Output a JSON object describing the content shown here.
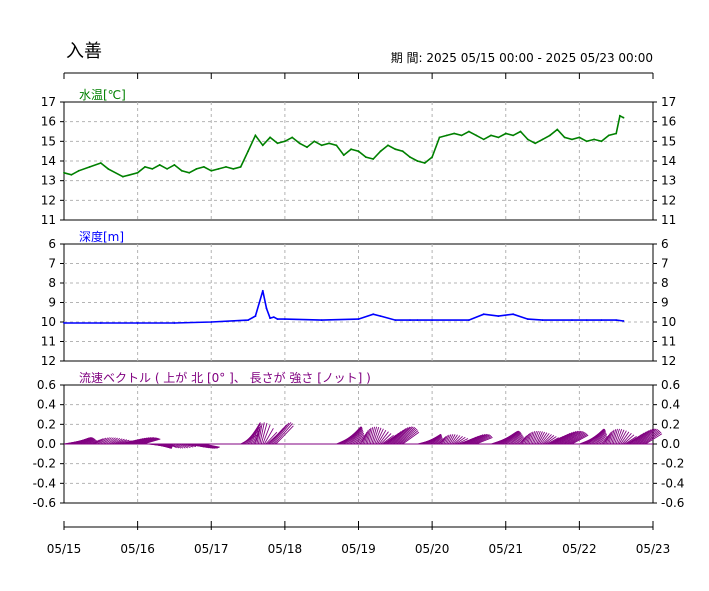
{
  "station": "入善",
  "period": "期 間: 2025 05/15 00:00 - 2025 05/23 00:00",
  "x_ticks": [
    "05/15",
    "05/16",
    "05/17",
    "05/18",
    "05/19",
    "05/20",
    "05/21",
    "05/22",
    "05/23"
  ],
  "chart_data": [
    {
      "type": "line",
      "title": "水温[℃]",
      "color": "#008000",
      "ylim": [
        11,
        17
      ],
      "yticks": [
        17,
        16,
        15,
        14,
        13,
        12,
        11
      ],
      "grid": true,
      "x": [
        0,
        0.1,
        0.2,
        0.35,
        0.5,
        0.6,
        0.8,
        1.0,
        1.1,
        1.2,
        1.3,
        1.4,
        1.5,
        1.6,
        1.7,
        1.8,
        1.9,
        2.0,
        2.1,
        2.2,
        2.3,
        2.4,
        2.5,
        2.6,
        2.7,
        2.8,
        2.9,
        3.0,
        3.1,
        3.2,
        3.3,
        3.4,
        3.5,
        3.6,
        3.7,
        3.8,
        3.9,
        4.0,
        4.1,
        4.2,
        4.3,
        4.4,
        4.5,
        4.6,
        4.7,
        4.8,
        4.9,
        5.0,
        5.1,
        5.2,
        5.3,
        5.4,
        5.5,
        5.6,
        5.7,
        5.8,
        5.9,
        6.0,
        6.1,
        6.2,
        6.3,
        6.4,
        6.5,
        6.6,
        6.7,
        6.8,
        6.9,
        7.0,
        7.1,
        7.2,
        7.3,
        7.4,
        7.5,
        7.55,
        7.6
      ],
      "values": [
        13.4,
        13.3,
        13.5,
        13.7,
        13.9,
        13.6,
        13.2,
        13.4,
        13.7,
        13.6,
        13.8,
        13.6,
        13.8,
        13.5,
        13.4,
        13.6,
        13.7,
        13.5,
        13.6,
        13.7,
        13.6,
        13.7,
        14.5,
        15.3,
        14.8,
        15.2,
        14.9,
        15.0,
        15.2,
        14.9,
        14.7,
        15.0,
        14.8,
        14.9,
        14.8,
        14.3,
        14.6,
        14.5,
        14.2,
        14.1,
        14.5,
        14.8,
        14.6,
        14.5,
        14.2,
        14.0,
        13.9,
        14.2,
        15.2,
        15.3,
        15.4,
        15.3,
        15.5,
        15.3,
        15.1,
        15.3,
        15.2,
        15.4,
        15.3,
        15.5,
        15.1,
        14.9,
        15.1,
        15.3,
        15.6,
        15.2,
        15.1,
        15.2,
        15.0,
        15.1,
        15.0,
        15.3,
        15.4,
        16.3,
        16.2
      ]
    },
    {
      "type": "line",
      "title": "深度[m]",
      "color": "#0000ff",
      "ylim": [
        6,
        12
      ],
      "inverted": true,
      "yticks": [
        6,
        7,
        8,
        9,
        10,
        11,
        12
      ],
      "grid": true,
      "x": [
        0,
        0.5,
        1.0,
        1.5,
        2.0,
        2.5,
        2.6,
        2.7,
        2.75,
        2.8,
        2.85,
        2.9,
        3.0,
        3.5,
        4.0,
        4.2,
        4.3,
        4.5,
        4.7,
        4.8,
        5.0,
        5.5,
        5.7,
        5.9,
        6.1,
        6.3,
        6.5,
        6.9,
        7.1,
        7.3,
        7.5,
        7.6
      ],
      "values": [
        10.05,
        10.05,
        10.05,
        10.05,
        10.0,
        9.9,
        9.7,
        8.4,
        9.3,
        9.8,
        9.75,
        9.85,
        9.85,
        9.9,
        9.85,
        9.6,
        9.7,
        9.9,
        9.9,
        9.9,
        9.9,
        9.9,
        9.6,
        9.7,
        9.6,
        9.85,
        9.9,
        9.9,
        9.9,
        9.9,
        9.9,
        9.95
      ]
    },
    {
      "type": "vector",
      "title": "流速ベクトル ( 上が 北 [0° ]、 長さが 強さ [ノット] )",
      "color": "#800080",
      "ylim": [
        -0.6,
        0.6
      ],
      "yticks": [
        0.6,
        0.4,
        0.2,
        0.0,
        -0.2,
        -0.4,
        -0.6
      ],
      "grid": true,
      "segments": [
        {
          "from": 0.0,
          "to": 1.1,
          "mag": 0.06
        },
        {
          "from": 1.15,
          "to": 1.9,
          "mag": -0.04
        },
        {
          "from": 2.4,
          "to": 2.9,
          "mag": 0.2
        },
        {
          "from": 3.7,
          "to": 4.6,
          "mag": 0.16
        },
        {
          "from": 4.8,
          "to": 5.6,
          "mag": 0.09
        },
        {
          "from": 5.8,
          "to": 6.9,
          "mag": 0.12
        },
        {
          "from": 7.0,
          "to": 7.9,
          "mag": 0.14
        }
      ]
    }
  ]
}
